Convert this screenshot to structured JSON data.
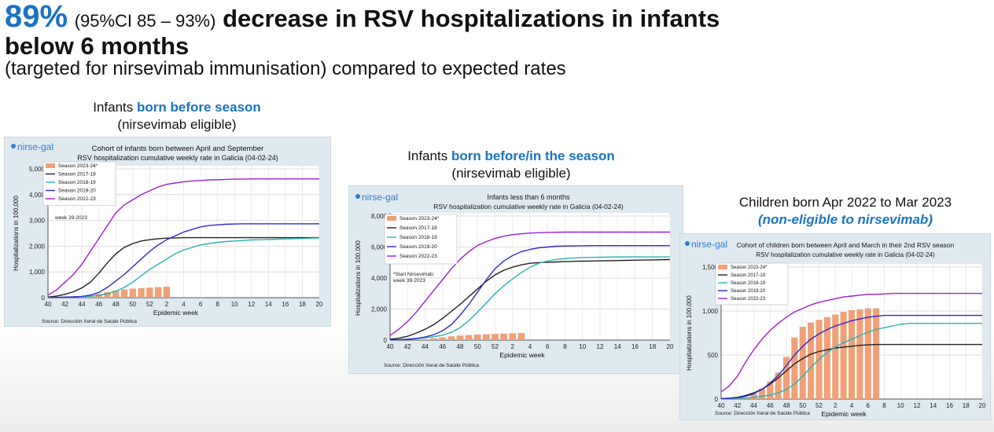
{
  "headline": {
    "pct": "89%",
    "ci": "(95%CI 85 – 93%)",
    "rest1": "decrease in RSV hospitalizations in infants",
    "line2": "below 6 months",
    "line3": "(targeted for nirsevimab immunisation) compared to expected rates"
  },
  "captions": {
    "c1": {
      "pre": "Infants ",
      "hi": "born before season",
      "line2": "(nirsevimab eligible)"
    },
    "c2": {
      "pre": "Infants ",
      "hi": "born before/in the season",
      "line2": "(nirsevimab eligible)"
    },
    "c3": {
      "line1": "Children born Apr 2022 to Mar 2023",
      "line2": "(non-eligible to nirsevimab)"
    }
  },
  "colors": {
    "2017-18": "#222222",
    "2018-19": "#27b3b3",
    "2019-20": "#2a2ad0",
    "2022-23": "#9b1fd8",
    "bar": "#f0a077"
  },
  "chart_data": [
    {
      "type": "line",
      "logo": "nirse-gal",
      "title": "Cohort of infants born between April and September",
      "subtitle": "RSV hospitalization cumulative weekly rate in Galicia (04-02-24)",
      "xlabel": "Epidemic week",
      "ylabel": "Hospitalizations in 100,000",
      "source": "Source: Dirección Xeral de Saúde Pública",
      "annotation": "week 39-2023",
      "x_ticks": [
        "40",
        "42",
        "44",
        "46",
        "48",
        "50",
        "52",
        "2",
        "4",
        "6",
        "8",
        "10",
        "12",
        "14",
        "16",
        "18",
        "20"
      ],
      "y_ticks": [
        "0",
        "1,000",
        "2,000",
        "3,000",
        "4,000",
        "5,000"
      ],
      "ylim": [
        0,
        5000
      ],
      "legend": [
        "Season 2023-24*",
        "Season 2017-18",
        "Season 2018-19",
        "Season 2019-20",
        "Season 2022-23"
      ],
      "bars": {
        "name": "Season 2023-24*",
        "values": [
          30,
          80,
          140,
          220,
          280,
          320,
          350,
          370,
          390,
          410,
          430
        ]
      },
      "series": [
        {
          "name": "Season 2017-18",
          "values": [
            20,
            60,
            130,
            230,
            380,
            600,
            950,
            1350,
            1700,
            1950,
            2100,
            2200,
            2250,
            2290,
            2310,
            2320,
            2330,
            2330,
            2330,
            2330,
            2330,
            2330,
            2330,
            2330,
            2330,
            2330,
            2330,
            2330,
            2330,
            2330,
            2330,
            2330,
            2330
          ]
        },
        {
          "name": "Season 2018-19",
          "values": [
            5,
            10,
            20,
            30,
            40,
            60,
            90,
            150,
            250,
            400,
            600,
            850,
            1100,
            1300,
            1500,
            1700,
            1850,
            1950,
            2050,
            2100,
            2150,
            2180,
            2200,
            2220,
            2240,
            2250,
            2260,
            2270,
            2280,
            2290,
            2300,
            2310,
            2320
          ]
        },
        {
          "name": "Season 2019-20",
          "values": [
            5,
            10,
            20,
            30,
            50,
            100,
            200,
            400,
            650,
            900,
            1200,
            1500,
            1800,
            2050,
            2250,
            2400,
            2550,
            2650,
            2750,
            2800,
            2830,
            2850,
            2860,
            2870,
            2870,
            2870,
            2870,
            2870,
            2870,
            2870,
            2870,
            2870,
            2870
          ]
        },
        {
          "name": "Season 2022-23",
          "values": [
            100,
            300,
            600,
            900,
            1300,
            1800,
            2300,
            2800,
            3300,
            3600,
            3800,
            4000,
            4150,
            4300,
            4400,
            4450,
            4500,
            4530,
            4550,
            4570,
            4580,
            4590,
            4600,
            4600,
            4610,
            4610,
            4610,
            4610,
            4610,
            4610,
            4610,
            4610,
            4610
          ]
        }
      ]
    },
    {
      "type": "line",
      "logo": "nirse-gal",
      "title": "Infants less than 6 months",
      "subtitle": "RSV hospitalization cumulative weekly rate in Galicia (04-02-24)",
      "xlabel": "Epidemic week",
      "ylabel": "Hospitalizations in 100,000",
      "source": "Source: Dirección Xeral de Saúde Pública",
      "annotation": "*Start Nirsevimab: week 39-2023",
      "x_ticks": [
        "40",
        "42",
        "44",
        "46",
        "48",
        "50",
        "52",
        "2",
        "4",
        "6",
        "8",
        "10",
        "12",
        "14",
        "16",
        "18",
        "20"
      ],
      "y_ticks": [
        "0",
        "2,000",
        "4,000",
        "6,000",
        "8,000"
      ],
      "ylim": [
        0,
        8000
      ],
      "legend": [
        "Season 2023-24*",
        "Season 2017-18",
        "Season 2018-19",
        "Season 2019-20",
        "Season 2022-23"
      ],
      "bars": {
        "name": "Season 2023-24*",
        "values": [
          60,
          120,
          180,
          240,
          290,
          330,
          360,
          380,
          400,
          420,
          440,
          460
        ]
      },
      "series": [
        {
          "name": "Season 2017-18",
          "values": [
            50,
            120,
            250,
            450,
            700,
            1000,
            1400,
            1850,
            2300,
            2800,
            3300,
            3800,
            4200,
            4500,
            4700,
            4850,
            4950,
            5000,
            5020,
            5040,
            5060,
            5080,
            5090,
            5100,
            5110,
            5120,
            5130,
            5140,
            5150,
            5160,
            5170,
            5180,
            5190
          ]
        },
        {
          "name": "Season 2018-19",
          "values": [
            10,
            30,
            60,
            100,
            150,
            220,
            320,
            500,
            800,
            1250,
            1800,
            2400,
            3000,
            3500,
            3950,
            4350,
            4700,
            4950,
            5100,
            5200,
            5250,
            5300,
            5320,
            5330,
            5340,
            5350,
            5360,
            5360,
            5360,
            5360,
            5360,
            5360,
            5360
          ]
        },
        {
          "name": "Season 2019-20",
          "values": [
            10,
            20,
            50,
            100,
            200,
            350,
            600,
            1000,
            1600,
            2300,
            3100,
            3900,
            4600,
            5100,
            5450,
            5700,
            5850,
            5950,
            6000,
            6050,
            6060,
            6070,
            6080,
            6090,
            6090,
            6090,
            6090,
            6090,
            6090,
            6090,
            6090,
            6090,
            6090
          ]
        },
        {
          "name": "Season 2022-23",
          "values": [
            300,
            700,
            1200,
            1800,
            2500,
            3200,
            3900,
            4600,
            5200,
            5700,
            6100,
            6350,
            6550,
            6700,
            6800,
            6850,
            6900,
            6920,
            6940,
            6950,
            6960,
            6960,
            6960,
            6960,
            6960,
            6960,
            6960,
            6960,
            6960,
            6960,
            6960,
            6960,
            6960
          ]
        }
      ]
    },
    {
      "type": "line",
      "logo": "nirse-gal",
      "title": "Cohort of children born between April and March in their 2nd RSV season",
      "subtitle": "RSV hospitalization cumulative weekly rate in Galicia (04-02-24)",
      "xlabel": "Epidemic week",
      "ylabel": "Hospitalizations in 100,000",
      "source": "Source: Dirección Xeral de Saúde Pública",
      "x_ticks": [
        "40",
        "42",
        "44",
        "46",
        "48",
        "50",
        "52",
        "2",
        "4",
        "6",
        "8",
        "10",
        "12",
        "14",
        "16",
        "18",
        "20"
      ],
      "y_ticks": [
        "0",
        "500",
        "1,000",
        "1,500"
      ],
      "ylim": [
        0,
        1500
      ],
      "legend": [
        "Season 2023-24*",
        "Season 2017-18",
        "Season 2018-19",
        "Season 2019-20",
        "Season 2022-23"
      ],
      "bars": {
        "name": "Season 2023-24*",
        "values": [
          5,
          15,
          60,
          120,
          200,
          300,
          480,
          700,
          820,
          870,
          900,
          930,
          960,
          990,
          1010,
          1020,
          1030,
          1030
        ]
      },
      "series": [
        {
          "name": "Season 2017-18",
          "values": [
            5,
            10,
            20,
            40,
            70,
            110,
            170,
            240,
            320,
            400,
            460,
            510,
            540,
            560,
            580,
            590,
            600,
            610,
            615,
            620,
            620,
            620,
            620,
            620,
            620,
            620,
            620,
            620,
            620,
            620,
            620,
            620,
            620
          ]
        },
        {
          "name": "Season 2018-19",
          "values": [
            2,
            4,
            8,
            12,
            20,
            30,
            45,
            70,
            110,
            170,
            260,
            360,
            450,
            530,
            590,
            640,
            680,
            720,
            760,
            790,
            810,
            830,
            850,
            860,
            860,
            860,
            860,
            860,
            860,
            860,
            860,
            860,
            860
          ]
        },
        {
          "name": "Season 2019-20",
          "values": [
            3,
            8,
            15,
            30,
            60,
            110,
            180,
            270,
            380,
            500,
            600,
            680,
            740,
            790,
            830,
            860,
            890,
            910,
            930,
            940,
            950,
            950,
            950,
            950,
            950,
            950,
            950,
            950,
            950,
            950,
            950,
            950,
            950
          ]
        },
        {
          "name": "Season 2022-23",
          "values": [
            80,
            150,
            260,
            420,
            560,
            680,
            780,
            860,
            930,
            990,
            1030,
            1070,
            1100,
            1120,
            1140,
            1160,
            1170,
            1180,
            1190,
            1190,
            1195,
            1200,
            1200,
            1200,
            1200,
            1200,
            1200,
            1200,
            1200,
            1200,
            1200,
            1200,
            1200
          ]
        }
      ]
    }
  ]
}
